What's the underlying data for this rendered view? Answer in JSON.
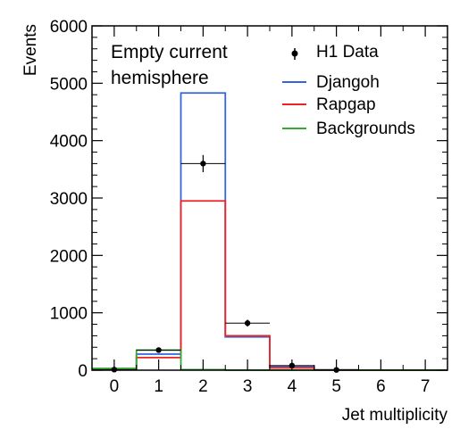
{
  "chart_data": {
    "type": "step",
    "xlabel": "Jet multiplicity",
    "ylabel": "Events",
    "xlim": [
      -0.5,
      7.5
    ],
    "ylim": [
      0,
      6000
    ],
    "x_ticks": [
      "0",
      "1",
      "2",
      "3",
      "4",
      "5",
      "6",
      "7"
    ],
    "y_ticks": [
      "0",
      "1000",
      "2000",
      "3000",
      "4000",
      "5000",
      "6000"
    ],
    "annotation": [
      "Empty current",
      "hemisphere"
    ],
    "legend_position": "top-right",
    "categories": [
      0,
      1,
      2,
      3,
      4,
      5,
      6,
      7
    ],
    "data_points": {
      "name": "H1 Data",
      "x": [
        0,
        1,
        2,
        3,
        4,
        5,
        6,
        7
      ],
      "y": [
        10,
        350,
        3600,
        820,
        80,
        5,
        0,
        0
      ],
      "err": [
        5,
        30,
        150,
        60,
        20,
        3,
        0,
        0
      ]
    },
    "series": [
      {
        "name": "Djangoh",
        "color": "#3366dd",
        "values": [
          20,
          280,
          4830,
          580,
          70,
          5,
          0,
          0
        ]
      },
      {
        "name": "Rapgap",
        "color": "#ee2222",
        "values": [
          10,
          220,
          2950,
          600,
          40,
          3,
          0,
          0
        ]
      },
      {
        "name": "Backgrounds",
        "color": "#33aa33",
        "values": [
          30,
          350,
          10,
          0,
          0,
          0,
          0,
          0
        ]
      }
    ]
  }
}
